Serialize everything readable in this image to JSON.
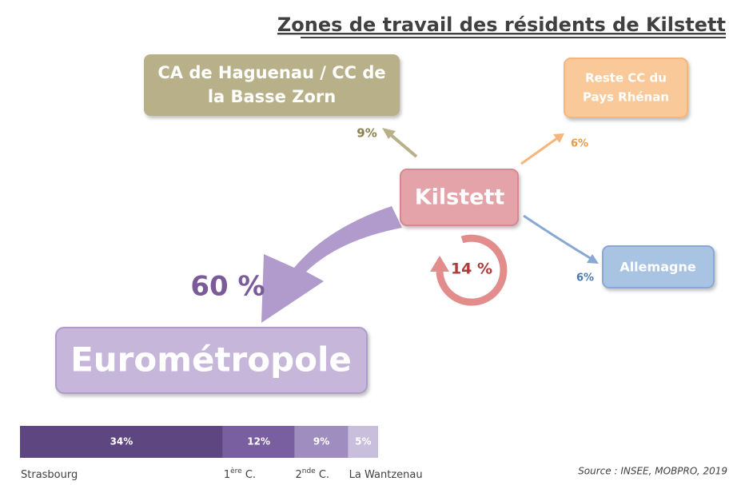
{
  "title": "Zones de travail des résidents de Kilstett",
  "nodes": [
    {
      "id": "haguenau",
      "lines": [
        "CA de Haguenau / CC de",
        "la Basse Zorn"
      ],
      "share": "9%"
    },
    {
      "id": "reste",
      "lines": [
        "Reste CC du",
        "Pays Rhénan"
      ],
      "share": "6%"
    },
    {
      "id": "kilstett",
      "lines": [
        "Kilstett"
      ],
      "share": "14 %"
    },
    {
      "id": "allemagne",
      "lines": [
        "Allemagne"
      ],
      "share": "6%"
    },
    {
      "id": "euro",
      "lines": [
        "Eurométropole"
      ],
      "share": "60 %"
    }
  ],
  "breakdown": {
    "segments": [
      {
        "value": 34,
        "label": "34%",
        "color": "#5e4780",
        "name": {
          "text": "Strasbourg"
        }
      },
      {
        "value": 12,
        "label": "12%",
        "color": "#7a5fa0",
        "name": {
          "text": "1",
          "sup": "ère",
          "after": " C."
        }
      },
      {
        "value": 9,
        "label": "9%",
        "color": "#a08dbf",
        "name": {
          "text": "2",
          "sup": "nde",
          "after": " C."
        }
      },
      {
        "value": 5,
        "label": "5%",
        "color": "#c9bedc",
        "name": {
          "text": "La Wantzenau"
        }
      }
    ]
  },
  "source": "Source : INSEE, MOBPRO, 2019"
}
